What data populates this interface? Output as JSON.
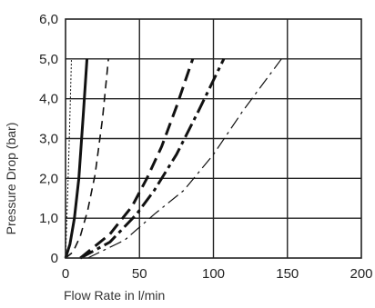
{
  "chart_data": {
    "type": "line",
    "xlabel": "Flow Rate in l/min",
    "ylabel": "Pressure Drop (bar)",
    "xlim": [
      0,
      200
    ],
    "ylim": [
      0,
      6
    ],
    "xticks": [
      "0",
      "50",
      "100",
      "150",
      "200"
    ],
    "yticks": [
      "0",
      "1,0",
      "2,0",
      "3,0",
      "4,0",
      "5,0",
      "6,0"
    ],
    "grid": true,
    "legend": "none",
    "series": [
      {
        "style": "dotted",
        "line_color": "#111111",
        "x": [
          0,
          0.8,
          1.6,
          2.4,
          3.2,
          4.0
        ],
        "y": [
          0,
          0.9,
          1.8,
          2.8,
          3.9,
          5.0
        ]
      },
      {
        "style": "solid-heavy",
        "line_color": "#111111",
        "x": [
          0,
          3,
          6,
          9,
          12,
          14.5
        ],
        "y": [
          0,
          0.35,
          1.0,
          2.0,
          3.6,
          5.0
        ]
      },
      {
        "style": "dashed",
        "line_color": "#111111",
        "x": [
          0,
          5,
          10,
          15,
          20,
          25,
          29
        ],
        "y": [
          0,
          0.15,
          0.55,
          1.2,
          2.1,
          3.5,
          5.0
        ]
      },
      {
        "style": "dashed-heavy",
        "line_color": "#111111",
        "x": [
          10,
          30,
          45,
          55,
          65,
          75,
          86
        ],
        "y": [
          0,
          0.6,
          1.3,
          2.0,
          2.8,
          3.8,
          5.0
        ]
      },
      {
        "style": "dash-dot-heavy",
        "line_color": "#111111",
        "x": [
          10,
          30,
          48,
          60,
          75,
          90,
          107
        ],
        "y": [
          0,
          0.4,
          1.1,
          1.7,
          2.6,
          3.7,
          5.0
        ]
      },
      {
        "style": "dash-dot-thin",
        "line_color": "#111111",
        "x": [
          15,
          40,
          60,
          80,
          100,
          120,
          146
        ],
        "y": [
          0,
          0.45,
          1.1,
          1.7,
          2.6,
          3.7,
          5.0
        ]
      }
    ]
  }
}
